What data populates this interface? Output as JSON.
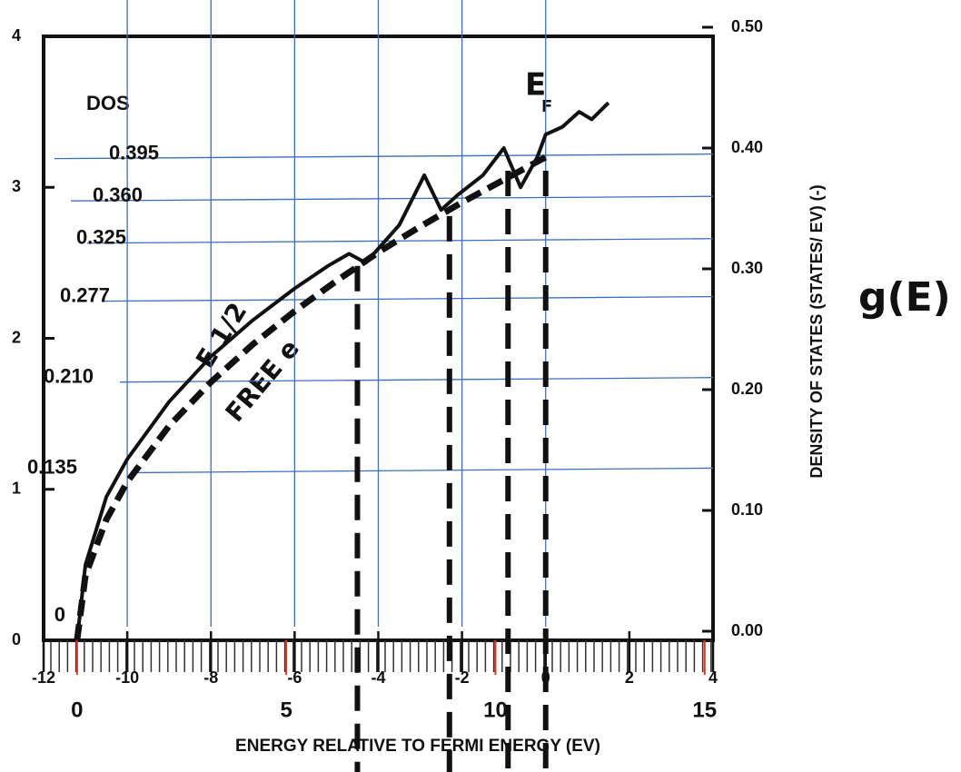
{
  "chart_data": {
    "type": "line",
    "xlabel": "ENERGY RELATIVE TO FERMI ENERGY (EV)",
    "y2label": "DENSITY OF STATES (STATES/ EV) (-)",
    "xlim": [
      -12,
      4
    ],
    "xticks": [
      -12,
      -10,
      -8,
      -6,
      -4,
      -2,
      0,
      2,
      4
    ],
    "ylim": [
      0,
      4
    ],
    "yticks": [
      0,
      1,
      2,
      3,
      4
    ],
    "y2lim": [
      0,
      0.5
    ],
    "y2ticks": [
      {
        "value": 0,
        "label": "0.00"
      },
      {
        "value": 0.1,
        "label": "0.10"
      },
      {
        "value": 0.2,
        "label": "0.20"
      },
      {
        "value": 0.3,
        "label": "0.30"
      },
      {
        "value": 0.4,
        "label": "0.40"
      },
      {
        "value": 0.5,
        "label": "0.50"
      }
    ],
    "series": [
      {
        "name": "FREE e",
        "color": "#111111",
        "dashed": true,
        "x": [
          -11.2,
          -11,
          -10.5,
          -10,
          -9,
          -8,
          -7,
          -6,
          -5,
          -4,
          -3,
          -2,
          -1,
          0
        ],
        "values": [
          0,
          0.43,
          0.8,
          1.05,
          1.42,
          1.71,
          1.96,
          2.18,
          2.38,
          2.57,
          2.74,
          2.9,
          3.05,
          3.2
        ]
      },
      {
        "name": "E 1/2",
        "color": "#111111",
        "dashed": false,
        "x": [
          -11.2,
          -11,
          -10.5,
          -10,
          -9,
          -8,
          -7,
          -6,
          -5.2,
          -4.7,
          -4.3,
          -3.5,
          -2.9,
          -2.5,
          -2.1,
          -1.5,
          -1,
          -0.6,
          -0.2,
          0,
          0.4,
          0.8,
          1.1,
          1.5
        ],
        "values": [
          0,
          0.5,
          0.95,
          1.2,
          1.58,
          1.88,
          2.12,
          2.33,
          2.48,
          2.56,
          2.5,
          2.75,
          3.08,
          2.85,
          2.95,
          3.08,
          3.26,
          3.0,
          3.2,
          3.35,
          3.4,
          3.5,
          3.45,
          3.56
        ]
      }
    ],
    "cutoffs": [
      -4.5,
      -2.3,
      -0.9,
      0
    ],
    "dos_title": "DOS",
    "dos_marks": [
      0.395,
      {
        "value": 0.36,
        "label": "0.360"
      },
      0.325,
      0.277,
      {
        "value": 0.21,
        "label": "0.210"
      },
      0.135,
      0
    ],
    "fermi_label": "E",
    "fermi_sub": "F",
    "g_label": "g(E)",
    "ruler": {
      "color": "#e8301c",
      "xlim": [
        -0.8,
        15.2
      ],
      "ticks": [
        0,
        5,
        10,
        15
      ]
    },
    "guide_color": "#3a6fc0"
  }
}
